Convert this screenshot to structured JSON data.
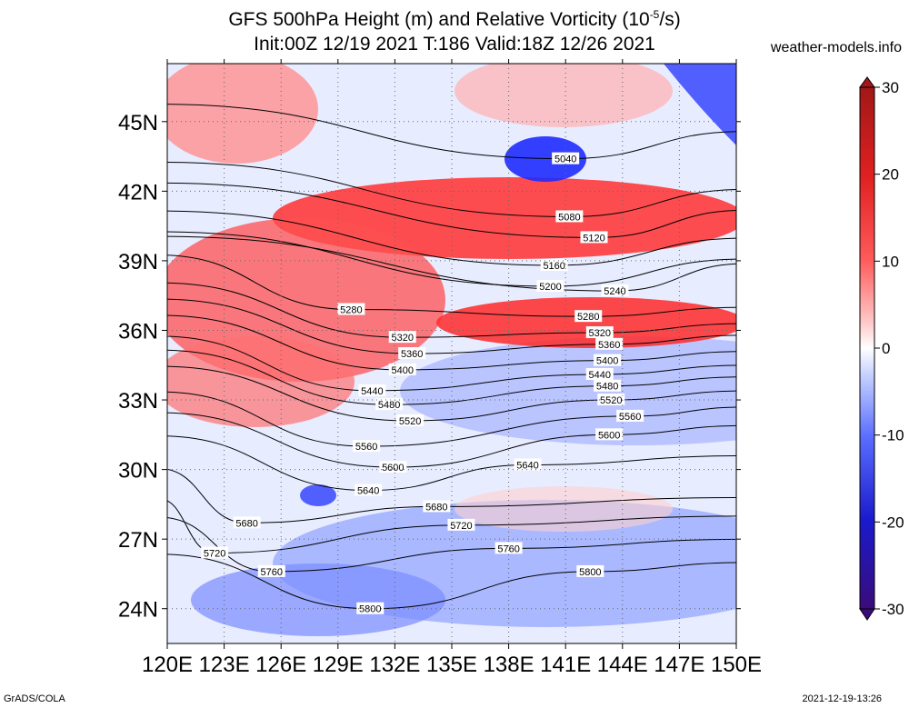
{
  "chart_data": {
    "type": "heatmap",
    "title_line1": "GFS 500hPa Height (m) and Relative Vorticity (10",
    "title_exp": "-5",
    "title_end": "/s)",
    "title_line2": "Init:00Z 12/19 2021 T:186 Valid:18Z 12/26 2021",
    "x_ticks": [
      "120E",
      "123E",
      "126E",
      "129E",
      "132E",
      "135E",
      "138E",
      "141E",
      "144E",
      "147E",
      "150E"
    ],
    "y_ticks": [
      "24N",
      "27N",
      "30N",
      "33N",
      "36N",
      "39N",
      "42N",
      "45N"
    ],
    "lon_range": [
      120,
      150
    ],
    "lat_range": [
      22.5,
      47.5
    ],
    "colorbar": {
      "ticks": [
        "30",
        "20",
        "10",
        "0",
        "-10",
        "-20",
        "-30"
      ],
      "range": [
        -30,
        30
      ]
    },
    "contours": [
      {
        "label": "5040",
        "lon": 141.0,
        "lat": 43.4
      },
      {
        "label": "5080",
        "lon": 141.2,
        "lat": 40.9
      },
      {
        "label": "5120",
        "lon": 142.5,
        "lat": 40.0
      },
      {
        "label": "5160",
        "lon": 140.4,
        "lat": 38.8
      },
      {
        "label": "5200",
        "lon": 140.2,
        "lat": 37.9
      },
      {
        "label": "5240",
        "lon": 143.6,
        "lat": 37.7
      },
      {
        "label": "5280",
        "lon": 129.7,
        "lat": 36.9
      },
      {
        "label": "5280",
        "lon": 142.2,
        "lat": 36.6
      },
      {
        "label": "5320",
        "lon": 132.4,
        "lat": 35.7
      },
      {
        "label": "5320",
        "lon": 142.8,
        "lat": 35.9
      },
      {
        "label": "5360",
        "lon": 132.9,
        "lat": 35.0
      },
      {
        "label": "5360",
        "lon": 143.3,
        "lat": 35.4
      },
      {
        "label": "5400",
        "lon": 132.4,
        "lat": 34.3
      },
      {
        "label": "5400",
        "lon": 143.2,
        "lat": 34.7
      },
      {
        "label": "5440",
        "lon": 130.8,
        "lat": 33.4
      },
      {
        "label": "5440",
        "lon": 142.8,
        "lat": 34.1
      },
      {
        "label": "5480",
        "lon": 131.7,
        "lat": 32.8
      },
      {
        "label": "5480",
        "lon": 143.2,
        "lat": 33.6
      },
      {
        "label": "5520",
        "lon": 132.8,
        "lat": 32.1
      },
      {
        "label": "5520",
        "lon": 143.4,
        "lat": 33.0
      },
      {
        "label": "5560",
        "lon": 130.5,
        "lat": 31.0
      },
      {
        "label": "5560",
        "lon": 144.4,
        "lat": 32.3
      },
      {
        "label": "5600",
        "lon": 131.9,
        "lat": 30.1
      },
      {
        "label": "5600",
        "lon": 143.3,
        "lat": 31.5
      },
      {
        "label": "5640",
        "lon": 130.6,
        "lat": 29.1
      },
      {
        "label": "5640",
        "lon": 139.0,
        "lat": 30.2
      },
      {
        "label": "5680",
        "lon": 124.2,
        "lat": 27.7
      },
      {
        "label": "5680",
        "lon": 134.2,
        "lat": 28.4
      },
      {
        "label": "5720",
        "lon": 122.5,
        "lat": 26.4
      },
      {
        "label": "5720",
        "lon": 135.5,
        "lat": 27.6
      },
      {
        "label": "5760",
        "lon": 125.5,
        "lat": 25.6
      },
      {
        "label": "5760",
        "lon": 138.0,
        "lat": 26.6
      },
      {
        "label": "5800",
        "lon": 130.7,
        "lat": 24.0
      },
      {
        "label": "5800",
        "lon": 142.3,
        "lat": 25.6
      }
    ]
  },
  "site": "weather-models.info",
  "footer_left": "GrADS/COLA",
  "footer_right": "2021-12-19-13:26"
}
